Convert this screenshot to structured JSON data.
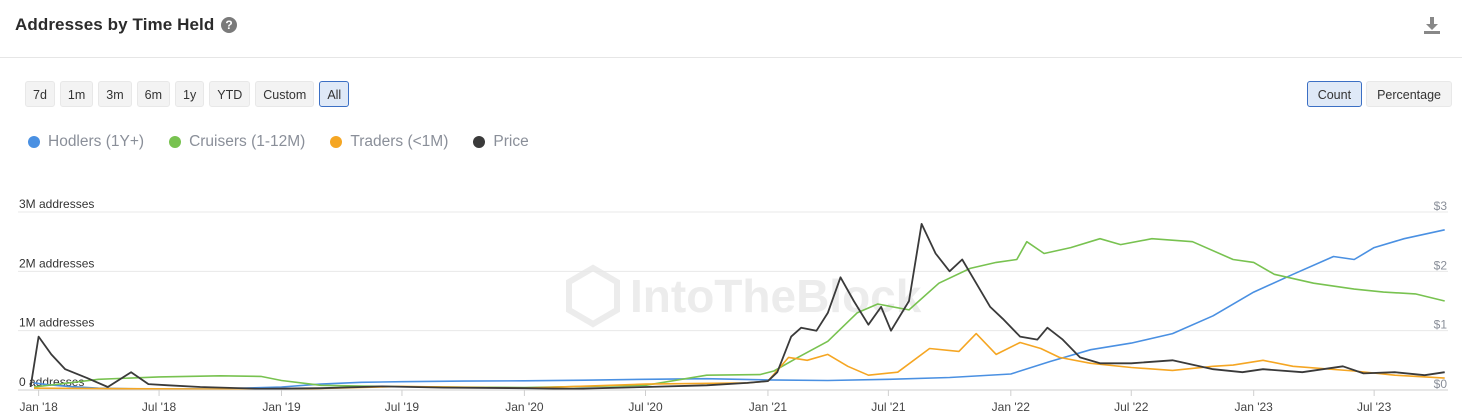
{
  "header": {
    "title": "Addresses by Time Held",
    "help_icon": "question-circle-icon",
    "download_icon": "download-icon"
  },
  "ranges": [
    "7d",
    "1m",
    "3m",
    "6m",
    "1y",
    "YTD",
    "Custom",
    "All"
  ],
  "active_range": "All",
  "modes": [
    "Count",
    "Percentage"
  ],
  "active_mode": "Count",
  "watermark": "IntoTheBlock",
  "chart_data": {
    "type": "line",
    "x_start": "2017-12-01",
    "x_end": "2023-10-20",
    "x_ticks": [
      {
        "date": "2018-01-01",
        "label": "Jan '18"
      },
      {
        "date": "2018-07-01",
        "label": "Jul '18"
      },
      {
        "date": "2019-01-01",
        "label": "Jan '19"
      },
      {
        "date": "2019-07-01",
        "label": "Jul '19"
      },
      {
        "date": "2020-01-01",
        "label": "Jan '20"
      },
      {
        "date": "2020-07-01",
        "label": "Jul '20"
      },
      {
        "date": "2021-01-01",
        "label": "Jan '21"
      },
      {
        "date": "2021-07-01",
        "label": "Jul '21"
      },
      {
        "date": "2022-01-01",
        "label": "Jan '22"
      },
      {
        "date": "2022-07-01",
        "label": "Jul '22"
      },
      {
        "date": "2023-01-01",
        "label": "Jan '23"
      },
      {
        "date": "2023-07-01",
        "label": "Jul '23"
      }
    ],
    "y_left": {
      "min": 0,
      "max": 3000000,
      "ticks": [
        {
          "value": 0,
          "label": "0 addresses"
        },
        {
          "value": 1000000,
          "label": "1M addresses"
        },
        {
          "value": 2000000,
          "label": "2M addresses"
        },
        {
          "value": 3000000,
          "label": "3M addresses"
        }
      ]
    },
    "y_right": {
      "min": 0,
      "max": 3,
      "ticks": [
        {
          "value": 0,
          "label": "$0"
        },
        {
          "value": 1,
          "label": "$1"
        },
        {
          "value": 2,
          "label": "$2"
        },
        {
          "value": 3,
          "label": "$3"
        }
      ]
    },
    "grid": true,
    "legend_position": "top-left",
    "series": [
      {
        "name": "Hodlers (1Y+)",
        "color": "#4a90e2",
        "axis": "left",
        "points": [
          [
            "2017-12-25",
            120000
          ],
          [
            "2018-01-15",
            90000
          ],
          [
            "2018-02-15",
            60000
          ],
          [
            "2018-04-01",
            30000
          ],
          [
            "2018-07-01",
            15000
          ],
          [
            "2018-10-01",
            20000
          ],
          [
            "2019-01-01",
            50000
          ],
          [
            "2019-03-01",
            100000
          ],
          [
            "2019-05-01",
            130000
          ],
          [
            "2019-07-01",
            140000
          ],
          [
            "2019-10-01",
            150000
          ],
          [
            "2020-01-01",
            155000
          ],
          [
            "2020-04-01",
            165000
          ],
          [
            "2020-07-01",
            180000
          ],
          [
            "2020-10-01",
            190000
          ],
          [
            "2021-01-01",
            170000
          ],
          [
            "2021-04-01",
            160000
          ],
          [
            "2021-07-01",
            180000
          ],
          [
            "2021-10-01",
            210000
          ],
          [
            "2022-01-01",
            270000
          ],
          [
            "2022-03-01",
            480000
          ],
          [
            "2022-05-01",
            680000
          ],
          [
            "2022-07-01",
            790000
          ],
          [
            "2022-09-01",
            950000
          ],
          [
            "2022-11-01",
            1250000
          ],
          [
            "2023-01-01",
            1650000
          ],
          [
            "2023-03-01",
            1950000
          ],
          [
            "2023-05-01",
            2250000
          ],
          [
            "2023-06-01",
            2200000
          ],
          [
            "2023-07-01",
            2400000
          ],
          [
            "2023-08-15",
            2550000
          ],
          [
            "2023-10-15",
            2700000
          ]
        ]
      },
      {
        "name": "Cruisers (1-12M)",
        "color": "#78c250",
        "axis": "left",
        "points": [
          [
            "2017-12-25",
            50000
          ],
          [
            "2018-02-01",
            100000
          ],
          [
            "2018-04-01",
            180000
          ],
          [
            "2018-07-01",
            220000
          ],
          [
            "2018-10-01",
            240000
          ],
          [
            "2018-12-01",
            230000
          ],
          [
            "2019-01-01",
            160000
          ],
          [
            "2019-03-01",
            80000
          ],
          [
            "2019-06-01",
            60000
          ],
          [
            "2019-09-01",
            50000
          ],
          [
            "2020-01-01",
            40000
          ],
          [
            "2020-07-01",
            80000
          ],
          [
            "2020-10-01",
            250000
          ],
          [
            "2020-12-20",
            260000
          ],
          [
            "2021-01-10",
            320000
          ],
          [
            "2021-02-15",
            550000
          ],
          [
            "2021-04-01",
            820000
          ],
          [
            "2021-05-15",
            1300000
          ],
          [
            "2021-06-15",
            1450000
          ],
          [
            "2021-08-01",
            1350000
          ],
          [
            "2021-09-15",
            1800000
          ],
          [
            "2021-11-01",
            2050000
          ],
          [
            "2021-12-10",
            2150000
          ],
          [
            "2022-01-10",
            2200000
          ],
          [
            "2022-01-25",
            2500000
          ],
          [
            "2022-02-20",
            2300000
          ],
          [
            "2022-04-01",
            2400000
          ],
          [
            "2022-05-15",
            2550000
          ],
          [
            "2022-06-15",
            2450000
          ],
          [
            "2022-08-01",
            2550000
          ],
          [
            "2022-10-01",
            2500000
          ],
          [
            "2022-12-01",
            2200000
          ],
          [
            "2023-01-01",
            2150000
          ],
          [
            "2023-02-01",
            1950000
          ],
          [
            "2023-04-01",
            1800000
          ],
          [
            "2023-06-01",
            1700000
          ],
          [
            "2023-07-15",
            1650000
          ],
          [
            "2023-09-01",
            1620000
          ],
          [
            "2023-10-15",
            1500000
          ]
        ]
      },
      {
        "name": "Traders (<1M)",
        "color": "#f5a623",
        "axis": "left",
        "points": [
          [
            "2017-12-25",
            30000
          ],
          [
            "2018-07-01",
            20000
          ],
          [
            "2019-01-01",
            10000
          ],
          [
            "2019-07-01",
            60000
          ],
          [
            "2020-01-01",
            30000
          ],
          [
            "2020-07-01",
            100000
          ],
          [
            "2020-12-01",
            120000
          ],
          [
            "2021-01-01",
            150000
          ],
          [
            "2021-02-01",
            550000
          ],
          [
            "2021-03-01",
            500000
          ],
          [
            "2021-04-01",
            600000
          ],
          [
            "2021-05-01",
            400000
          ],
          [
            "2021-06-01",
            250000
          ],
          [
            "2021-07-15",
            300000
          ],
          [
            "2021-09-01",
            700000
          ],
          [
            "2021-10-15",
            650000
          ],
          [
            "2021-11-10",
            950000
          ],
          [
            "2021-12-10",
            600000
          ],
          [
            "2022-01-15",
            800000
          ],
          [
            "2022-02-15",
            700000
          ],
          [
            "2022-03-15",
            550000
          ],
          [
            "2022-05-01",
            450000
          ],
          [
            "2022-07-01",
            380000
          ],
          [
            "2022-09-01",
            330000
          ],
          [
            "2022-11-01",
            400000
          ],
          [
            "2022-12-01",
            420000
          ],
          [
            "2023-01-15",
            500000
          ],
          [
            "2023-03-01",
            400000
          ],
          [
            "2023-06-01",
            320000
          ],
          [
            "2023-08-01",
            250000
          ],
          [
            "2023-10-15",
            200000
          ]
        ]
      },
      {
        "name": "Price",
        "color": "#3a3a3a",
        "axis": "right",
        "points": [
          [
            "2017-12-20",
            0.05
          ],
          [
            "2018-01-01",
            0.9
          ],
          [
            "2018-01-20",
            0.6
          ],
          [
            "2018-02-10",
            0.35
          ],
          [
            "2018-03-15",
            0.2
          ],
          [
            "2018-04-15",
            0.05
          ],
          [
            "2018-05-20",
            0.3
          ],
          [
            "2018-06-15",
            0.1
          ],
          [
            "2018-07-15",
            0.08
          ],
          [
            "2018-09-01",
            0.05
          ],
          [
            "2018-12-01",
            0.02
          ],
          [
            "2019-03-01",
            0.03
          ],
          [
            "2019-06-01",
            0.06
          ],
          [
            "2019-09-01",
            0.04
          ],
          [
            "2020-01-01",
            0.03
          ],
          [
            "2020-03-15",
            0.02
          ],
          [
            "2020-07-01",
            0.05
          ],
          [
            "2020-10-01",
            0.08
          ],
          [
            "2020-12-01",
            0.12
          ],
          [
            "2021-01-01",
            0.15
          ],
          [
            "2021-01-15",
            0.3
          ],
          [
            "2021-02-05",
            0.9
          ],
          [
            "2021-02-20",
            1.05
          ],
          [
            "2021-03-15",
            1.0
          ],
          [
            "2021-04-01",
            1.3
          ],
          [
            "2021-04-20",
            1.9
          ],
          [
            "2021-05-10",
            1.5
          ],
          [
            "2021-06-01",
            1.1
          ],
          [
            "2021-06-20",
            1.4
          ],
          [
            "2021-07-05",
            1.0
          ],
          [
            "2021-08-01",
            1.5
          ],
          [
            "2021-08-20",
            2.8
          ],
          [
            "2021-09-10",
            2.3
          ],
          [
            "2021-10-01",
            2.0
          ],
          [
            "2021-10-20",
            2.2
          ],
          [
            "2021-11-10",
            1.8
          ],
          [
            "2021-12-01",
            1.4
          ],
          [
            "2021-12-20",
            1.2
          ],
          [
            "2022-01-15",
            0.9
          ],
          [
            "2022-02-10",
            0.85
          ],
          [
            "2022-02-25",
            1.05
          ],
          [
            "2022-03-20",
            0.85
          ],
          [
            "2022-04-15",
            0.55
          ],
          [
            "2022-05-15",
            0.45
          ],
          [
            "2022-07-01",
            0.45
          ],
          [
            "2022-09-01",
            0.5
          ],
          [
            "2022-11-01",
            0.35
          ],
          [
            "2022-12-15",
            0.3
          ],
          [
            "2023-01-15",
            0.35
          ],
          [
            "2023-03-15",
            0.3
          ],
          [
            "2023-05-15",
            0.4
          ],
          [
            "2023-06-15",
            0.28
          ],
          [
            "2023-08-01",
            0.3
          ],
          [
            "2023-09-15",
            0.25
          ],
          [
            "2023-10-15",
            0.3
          ]
        ]
      }
    ]
  }
}
